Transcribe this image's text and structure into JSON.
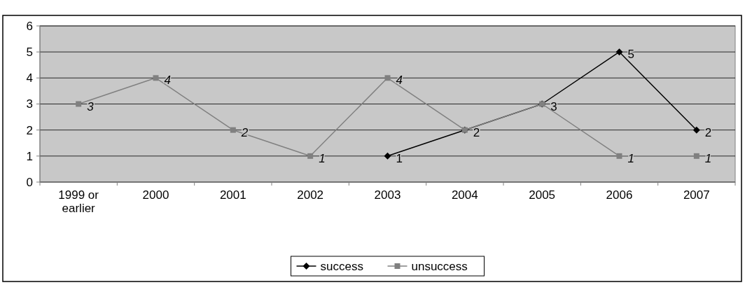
{
  "chart_data": {
    "type": "line",
    "categories": [
      "1999 or earlier",
      "2000",
      "2001",
      "2002",
      "2003",
      "2004",
      "2005",
      "2006",
      "2007"
    ],
    "series": [
      {
        "name": "success",
        "color": "#000000",
        "marker": "diamond",
        "values": [
          null,
          null,
          null,
          null,
          1,
          2,
          3,
          5,
          2
        ],
        "value_labels": [
          null,
          null,
          null,
          null,
          "1",
          "2",
          "3",
          "5",
          "2"
        ]
      },
      {
        "name": "unsuccess",
        "color": "#808080",
        "marker": "square",
        "values": [
          3,
          4,
          2,
          1,
          4,
          2,
          3,
          1,
          1
        ],
        "value_labels": [
          "3",
          "4",
          "2",
          "1",
          "4",
          null,
          null,
          "1",
          "1"
        ]
      }
    ],
    "ylim": [
      0,
      6
    ],
    "yticks": [
      0,
      1,
      2,
      3,
      4,
      5,
      6
    ],
    "grid": "y",
    "legend": "bottom"
  }
}
